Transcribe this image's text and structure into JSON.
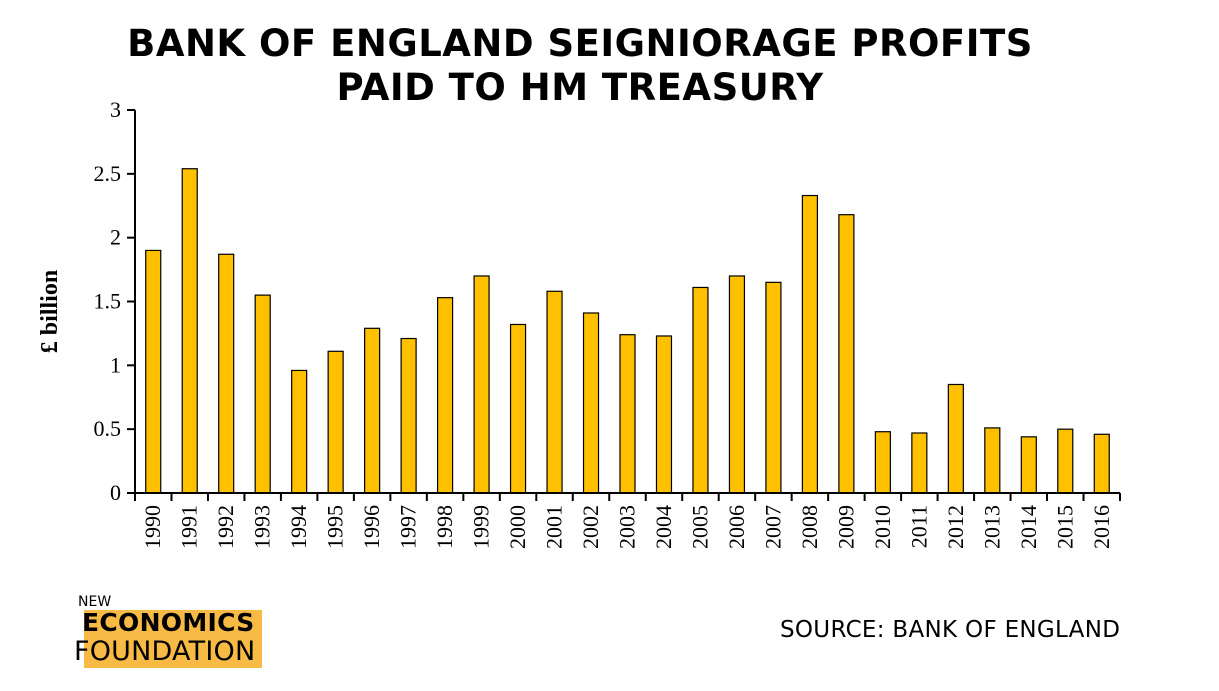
{
  "chart_data": {
    "type": "bar",
    "title_lines": [
      "BANK OF ENGLAND SEIGNIORAGE PROFITS",
      "PAID TO HM TREASURY"
    ],
    "xlabel": "",
    "ylabel": "£ billion",
    "ylim": [
      0,
      3
    ],
    "yticks": [
      "0",
      "0.5",
      "1",
      "1.5",
      "2",
      "2.5",
      "3"
    ],
    "grid": false,
    "bar_color": "#FFC000",
    "categories": [
      "1990",
      "1991",
      "1992",
      "1993",
      "1994",
      "1995",
      "1996",
      "1997",
      "1998",
      "1999",
      "2000",
      "2001",
      "2002",
      "2003",
      "2004",
      "2005",
      "2006",
      "2007",
      "2008",
      "2009",
      "2010",
      "2011",
      "2012",
      "2013",
      "2014",
      "2015",
      "2016"
    ],
    "values": [
      1.9,
      2.54,
      1.87,
      1.55,
      0.96,
      1.11,
      1.29,
      1.21,
      1.53,
      1.7,
      1.32,
      1.58,
      1.41,
      1.24,
      1.23,
      1.61,
      1.7,
      1.65,
      2.33,
      2.18,
      0.48,
      0.47,
      0.85,
      0.51,
      0.44,
      0.5,
      0.46
    ]
  },
  "source": "SOURCE: BANK OF ENGLAND",
  "logo": {
    "line1": "NEW",
    "line2": "ECONOMICS",
    "line3": "FOUNDATION",
    "highlight_color": "#F7BA45"
  }
}
